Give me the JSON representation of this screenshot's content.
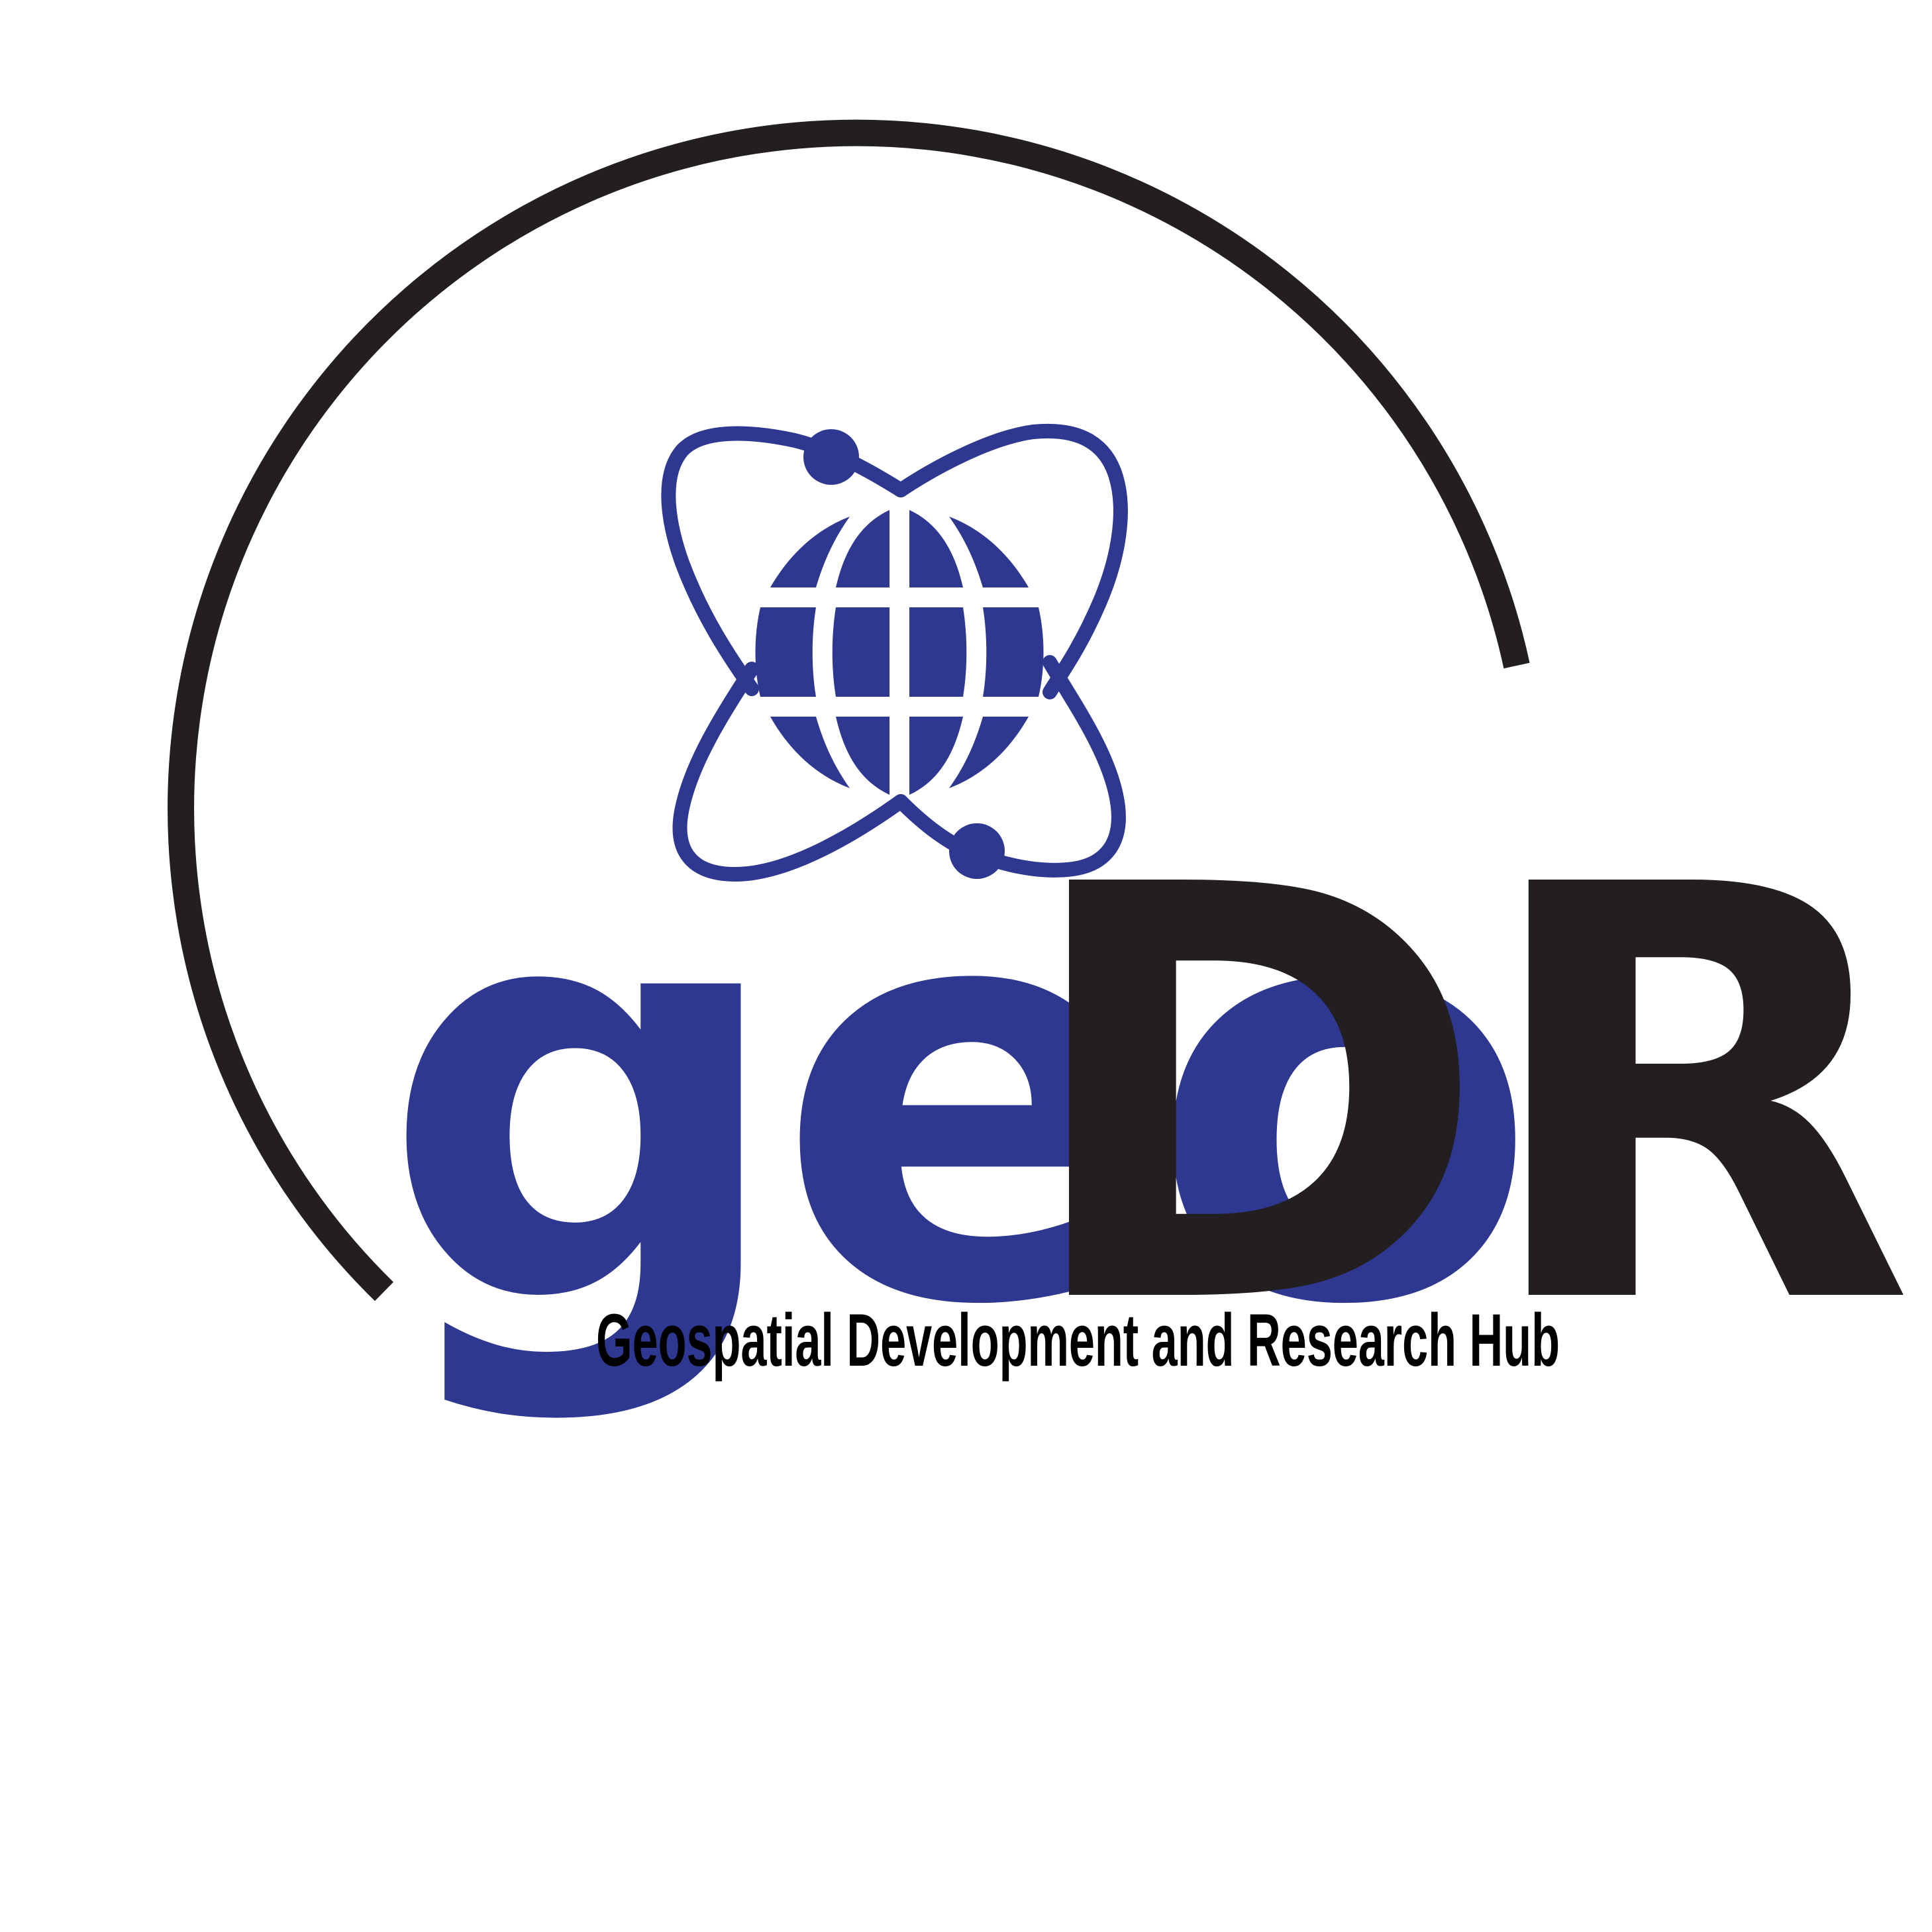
{
  "logo": {
    "wordmark_part1": "geo",
    "wordmark_part2": "DR",
    "tagline": "Geospatial Development and Research Hub",
    "colors": {
      "primary_blue": "#2E3891",
      "dark": "#231F20",
      "background": "#FFFFFF"
    },
    "icons": [
      "globe-icon",
      "orbit-ring-icon",
      "arc-swoosh"
    ]
  }
}
